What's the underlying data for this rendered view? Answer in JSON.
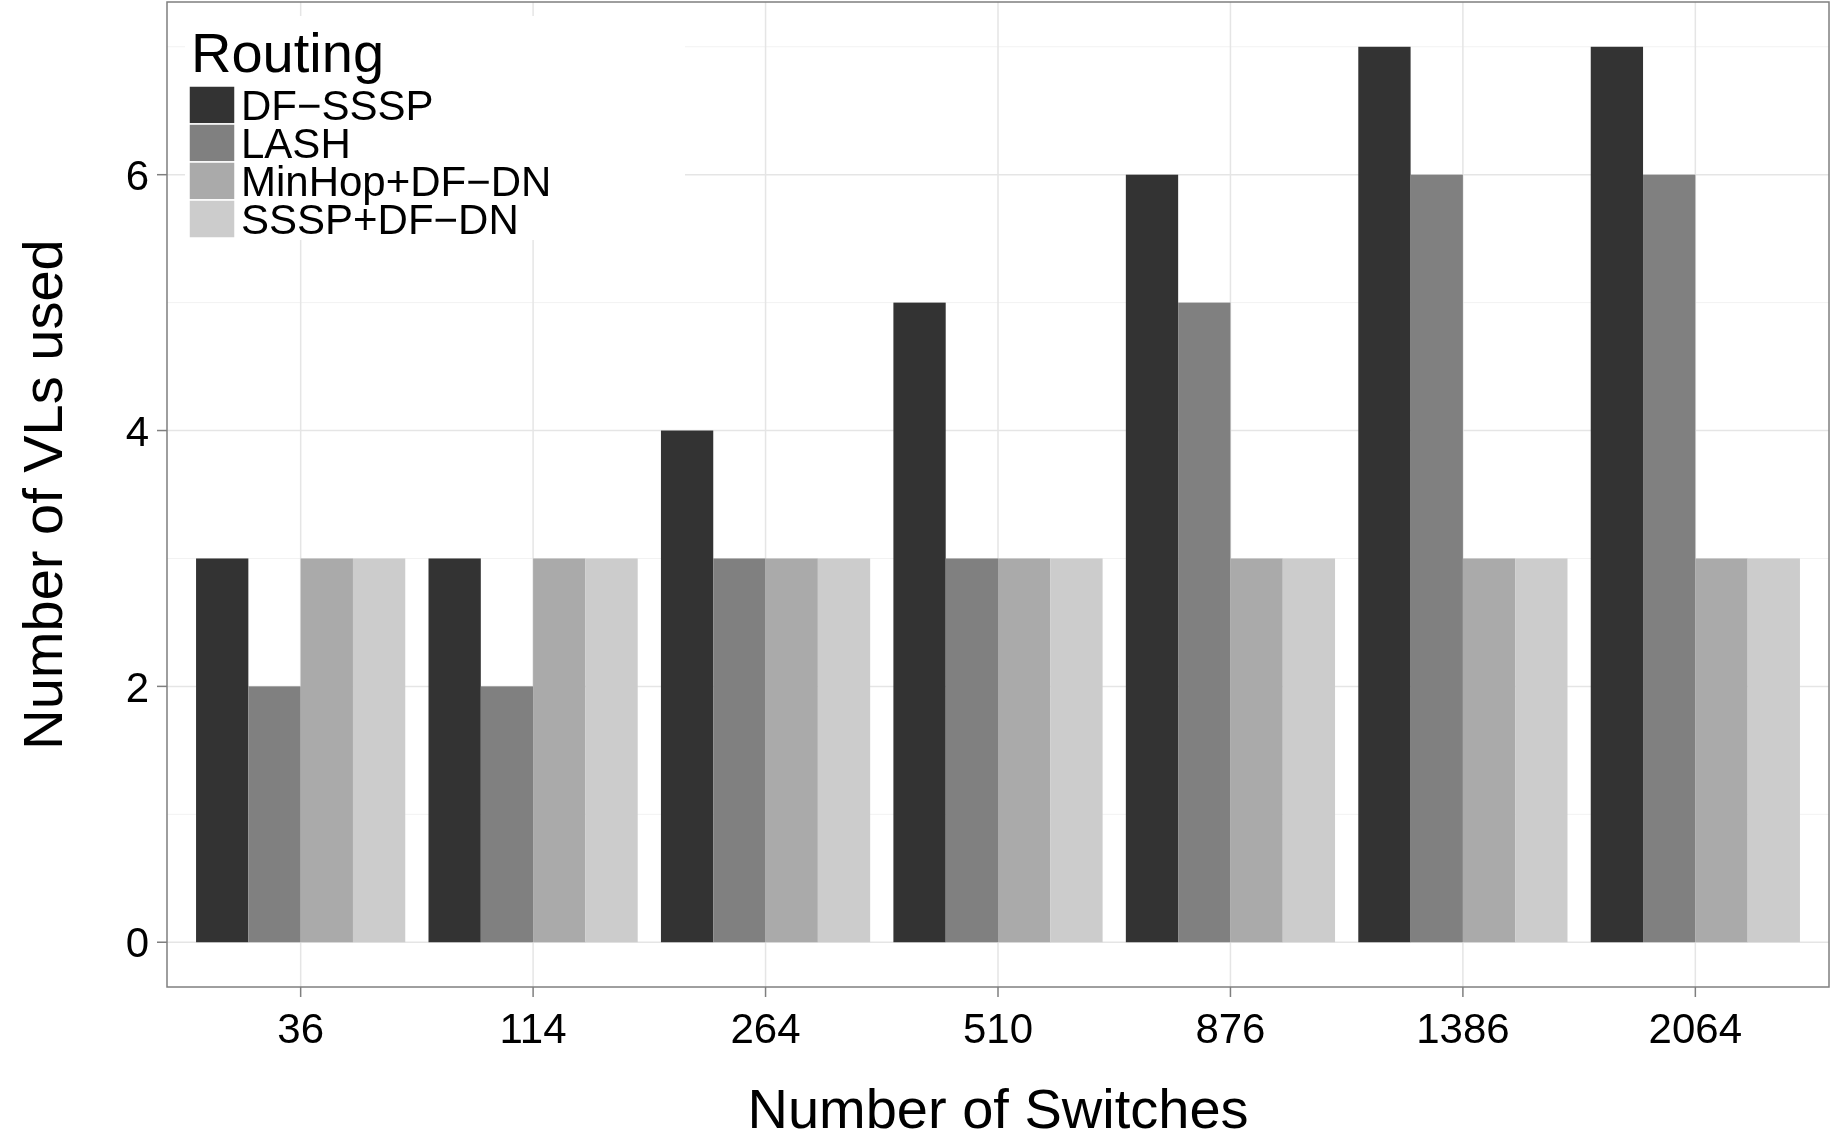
{
  "chart_data": {
    "type": "bar",
    "xlabel": "Number of Switches",
    "ylabel": "Number of VLs used",
    "legend_title": "Routing",
    "categories": [
      "36",
      "114",
      "264",
      "510",
      "876",
      "1386",
      "2064"
    ],
    "series": [
      {
        "name": "DF−SSSP",
        "color": "#333333",
        "values": [
          3,
          3,
          4,
          5,
          6,
          7,
          7
        ]
      },
      {
        "name": "LASH",
        "color": "#808080",
        "values": [
          2,
          2,
          3,
          3,
          5,
          6,
          6
        ]
      },
      {
        "name": "MinHop+DF−DN",
        "color": "#aaaaaa",
        "values": [
          3,
          3,
          3,
          3,
          3,
          3,
          3
        ]
      },
      {
        "name": "SSSP+DF−DN",
        "color": "#cccccc",
        "values": [
          3,
          3,
          3,
          3,
          3,
          3,
          3
        ]
      }
    ],
    "ylim": [
      -0.35,
      7.35
    ],
    "yticks": [
      0,
      2,
      4,
      6
    ],
    "grid": true,
    "legend": "top left"
  }
}
